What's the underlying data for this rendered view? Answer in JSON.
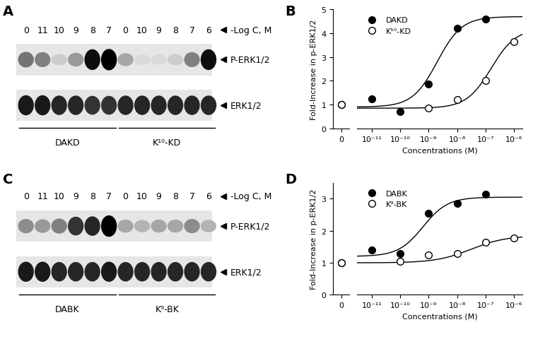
{
  "blots": [
    {
      "panel": "A",
      "lane_labels": [
        "0",
        "11",
        "10",
        "9",
        "8",
        "7",
        "0",
        "10",
        "9",
        "8",
        "7",
        "6"
      ],
      "lane_axis_label": "-Log C, M",
      "bands": [
        {
          "name": "P-ERK1/2",
          "intensity": [
            0.55,
            0.5,
            0.2,
            0.4,
            0.95,
            1.0,
            0.35,
            0.15,
            0.15,
            0.2,
            0.5,
            0.95
          ]
        },
        {
          "name": "ERK1/2",
          "intensity": [
            0.9,
            0.9,
            0.85,
            0.85,
            0.8,
            0.8,
            0.85,
            0.85,
            0.85,
            0.85,
            0.85,
            0.85
          ]
        }
      ],
      "groups": [
        {
          "name": "DAKD",
          "lanes": 6
        },
        {
          "name": "K¹⁰-KD",
          "lanes": 6
        }
      ]
    },
    {
      "panel": "C",
      "lane_labels": [
        "0",
        "11",
        "10",
        "9",
        "8",
        "7",
        "0",
        "10",
        "9",
        "8",
        "7",
        "6"
      ],
      "lane_axis_label": "-Log C, M",
      "bands": [
        {
          "name": "P-ERK1/2",
          "intensity": [
            0.45,
            0.4,
            0.5,
            0.8,
            0.85,
            1.0,
            0.35,
            0.3,
            0.35,
            0.35,
            0.45,
            0.3
          ]
        },
        {
          "name": "ERK1/2",
          "intensity": [
            0.9,
            0.9,
            0.85,
            0.85,
            0.85,
            0.9,
            0.85,
            0.85,
            0.85,
            0.85,
            0.85,
            0.85
          ]
        }
      ],
      "groups": [
        {
          "name": "DABK",
          "lanes": 6
        },
        {
          "name": "K⁹-BK",
          "lanes": 6
        }
      ]
    }
  ],
  "chart_data": [
    {
      "panel": "B",
      "type": "scatter",
      "log": "x",
      "legend": "upper left",
      "x_label": "Concentrations (M)",
      "y_label": "Fold-Increase in p-ERK1/2",
      "x": [
        0,
        1e-11,
        1e-10,
        1e-09,
        1e-08,
        1e-07,
        1e-06
      ],
      "xlim": [
        3e-12,
        2e-06
      ],
      "xticks": [
        {
          "value": 0,
          "label": "0"
        },
        {
          "value": 1e-11,
          "label": "10⁻¹¹"
        },
        {
          "value": 1e-10,
          "label": "10⁻¹⁰"
        },
        {
          "value": 1e-09,
          "label": "10⁻⁹"
        },
        {
          "value": 1e-08,
          "label": "10⁻⁸"
        },
        {
          "value": 1e-07,
          "label": "10⁻⁷"
        },
        {
          "value": 1e-06,
          "label": "10⁻⁶"
        }
      ],
      "ylim": [
        0,
        5
      ],
      "yticks": [
        0,
        1,
        2,
        3,
        4,
        5
      ],
      "series": [
        {
          "name": "DAKD",
          "color": "black",
          "marker": "filled_circle",
          "values": [
            1.0,
            1.25,
            0.7,
            1.85,
            4.2,
            4.6,
            null
          ],
          "fit": {
            "bottom": 0.9,
            "top": 4.7,
            "log_ec50": -8.7,
            "hill": 1
          }
        },
        {
          "name": "K¹⁰-KD",
          "color": "black",
          "marker": "open_circle",
          "values": [
            1.0,
            null,
            null,
            0.85,
            1.2,
            2.0,
            3.65
          ],
          "fit": {
            "bottom": 0.85,
            "top": 4.2,
            "log_ec50": -6.8,
            "hill": 1
          }
        }
      ]
    },
    {
      "panel": "D",
      "type": "scatter",
      "log": "x",
      "legend": "upper left",
      "x_label": "Concentrations (M)",
      "y_label": "Fold-Increase in p-ERK1/2",
      "x": [
        0,
        1e-11,
        1e-10,
        1e-09,
        1e-08,
        1e-07,
        1e-06
      ],
      "xlim": [
        3e-12,
        2e-06
      ],
      "xticks": [
        {
          "value": 0,
          "label": "0"
        },
        {
          "value": 1e-11,
          "label": "10⁻¹¹"
        },
        {
          "value": 1e-10,
          "label": "10⁻¹⁰"
        },
        {
          "value": 1e-09,
          "label": "10⁻⁹"
        },
        {
          "value": 1e-08,
          "label": "10⁻⁸"
        },
        {
          "value": 1e-07,
          "label": "10⁻⁷"
        },
        {
          "value": 1e-06,
          "label": "10⁻⁶"
        }
      ],
      "ylim": [
        0,
        3.5
      ],
      "yticks": [
        0,
        1,
        2,
        3
      ],
      "series": [
        {
          "name": "DABK",
          "color": "black",
          "marker": "filled_circle",
          "values": [
            1.0,
            1.4,
            1.3,
            2.55,
            2.85,
            3.15,
            null
          ],
          "fit": {
            "bottom": 1.2,
            "top": 3.05,
            "log_ec50": -9.2,
            "hill": 1
          }
        },
        {
          "name": "K⁹-BK",
          "color": "black",
          "marker": "open_circle",
          "values": [
            1.0,
            null,
            1.05,
            1.25,
            1.3,
            1.65,
            1.78
          ],
          "fit": {
            "bottom": 1.0,
            "top": 1.85,
            "log_ec50": -7.5,
            "hill": 0.7
          }
        }
      ]
    }
  ]
}
